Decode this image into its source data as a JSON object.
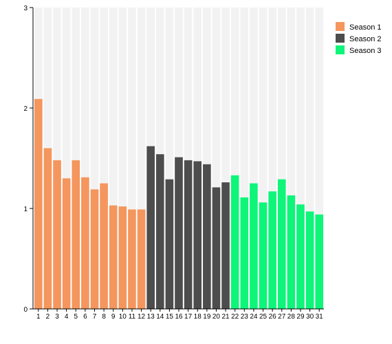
{
  "chart_data": {
    "type": "bar",
    "categories": [
      "1",
      "2",
      "3",
      "4",
      "5",
      "6",
      "7",
      "8",
      "9",
      "10",
      "11",
      "12",
      "13",
      "14",
      "15",
      "16",
      "17",
      "18",
      "19",
      "20",
      "21",
      "22",
      "23",
      "24",
      "25",
      "26",
      "27",
      "28",
      "29",
      "30",
      "31"
    ],
    "values": [
      2.09,
      1.6,
      1.48,
      1.3,
      1.48,
      1.31,
      1.19,
      1.25,
      1.03,
      1.02,
      0.99,
      0.99,
      1.62,
      1.54,
      1.29,
      1.51,
      1.48,
      1.47,
      1.44,
      1.21,
      1.26,
      1.33,
      1.11,
      1.25,
      1.06,
      1.17,
      1.29,
      1.13,
      1.04,
      0.97,
      0.94
    ],
    "series_of_bar": [
      1,
      1,
      1,
      1,
      1,
      1,
      1,
      1,
      1,
      1,
      1,
      1,
      2,
      2,
      2,
      2,
      2,
      2,
      2,
      2,
      2,
      3,
      3,
      3,
      3,
      3,
      3,
      3,
      3,
      3,
      3
    ],
    "legend": [
      {
        "name": "Season 1",
        "color": "#f4965d"
      },
      {
        "name": "Season 2",
        "color": "#4d4d4d"
      },
      {
        "name": "Season 3",
        "color": "#0ef57a"
      }
    ],
    "title": "",
    "xlabel": "",
    "ylabel": "",
    "ylim": [
      0,
      3
    ],
    "yticks": [
      "0",
      "1",
      "2",
      "3"
    ],
    "background_band_color": "#f2f2f2",
    "grid": false,
    "legend_position": "top-right"
  }
}
